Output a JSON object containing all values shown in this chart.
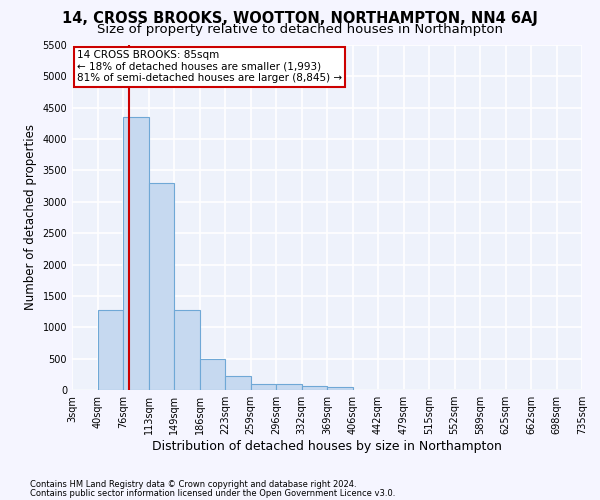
{
  "title": "14, CROSS BROOKS, WOOTTON, NORTHAMPTON, NN4 6AJ",
  "subtitle": "Size of property relative to detached houses in Northampton",
  "xlabel": "Distribution of detached houses by size in Northampton",
  "ylabel": "Number of detached properties",
  "footnote1": "Contains HM Land Registry data © Crown copyright and database right 2024.",
  "footnote2": "Contains public sector information licensed under the Open Government Licence v3.0.",
  "bin_labels": [
    "3sqm",
    "40sqm",
    "76sqm",
    "113sqm",
    "149sqm",
    "186sqm",
    "223sqm",
    "259sqm",
    "296sqm",
    "332sqm",
    "369sqm",
    "406sqm",
    "442sqm",
    "479sqm",
    "515sqm",
    "552sqm",
    "589sqm",
    "625sqm",
    "662sqm",
    "698sqm",
    "735sqm"
  ],
  "bar_values": [
    0,
    1270,
    4350,
    3300,
    1270,
    490,
    220,
    90,
    90,
    60,
    55,
    0,
    0,
    0,
    0,
    0,
    0,
    0,
    0,
    0,
    0
  ],
  "bar_color": "#c6d9f0",
  "bar_edge_color": "#6fa8d6",
  "red_line_color": "#cc0000",
  "annotation_text": "14 CROSS BROOKS: 85sqm\n← 18% of detached houses are smaller (1,993)\n81% of semi-detached houses are larger (8,845) →",
  "annotation_box_color": "#ffffff",
  "annotation_box_edge_color": "#cc0000",
  "ylim": [
    0,
    5500
  ],
  "yticks": [
    0,
    500,
    1000,
    1500,
    2000,
    2500,
    3000,
    3500,
    4000,
    4500,
    5000,
    5500
  ],
  "background_color": "#eef2fb",
  "grid_color": "#ffffff",
  "title_fontsize": 10.5,
  "subtitle_fontsize": 9.5,
  "xlabel_fontsize": 9,
  "ylabel_fontsize": 8.5,
  "tick_fontsize": 7,
  "annot_fontsize": 7.5,
  "footnote_fontsize": 6
}
